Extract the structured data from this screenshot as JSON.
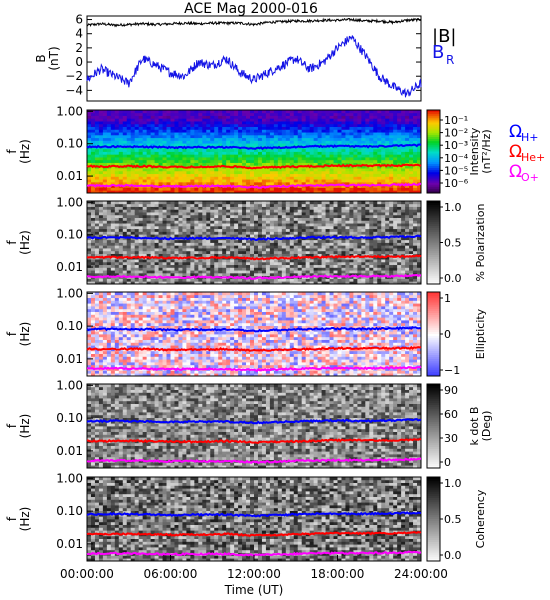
{
  "title": "ACE Mag 2000-016",
  "colors": {
    "bmag": "#000000",
    "br": "#1414e6",
    "h_gyro": "#0000ff",
    "he_gyro": "#ff0000",
    "o_gyro": "#ff00ff"
  },
  "chart_data": [
    {
      "type": "line",
      "panel": "B",
      "ylabel_line1": "B",
      "ylabel_line2": "(nT)",
      "ylim": [
        -5.5,
        6.5
      ],
      "yticks": [
        6,
        4,
        2,
        0,
        -2,
        -4
      ],
      "series": [
        {
          "name": "|B|",
          "color": "#000000",
          "x": [
            0,
            1,
            2,
            3,
            4,
            5,
            6,
            7,
            8,
            9,
            10,
            11,
            12,
            13,
            14,
            15,
            16,
            17,
            18,
            19,
            20,
            21,
            22,
            23,
            24
          ],
          "values": [
            5.2,
            5.4,
            5.2,
            5.3,
            5.4,
            5.3,
            5.4,
            5.5,
            5.4,
            5.5,
            5.5,
            5.5,
            5.3,
            5.6,
            5.7,
            5.8,
            5.8,
            5.9,
            5.9,
            6.0,
            5.8,
            5.8,
            5.6,
            5.9,
            6.0
          ]
        },
        {
          "name": "B_R",
          "label_main": "B",
          "label_sub": "R",
          "color": "#1414e6",
          "x": [
            0,
            1,
            2,
            3,
            4,
            5,
            6,
            7,
            8,
            9,
            10,
            11,
            12,
            13,
            14,
            15,
            16,
            17,
            18,
            19,
            20,
            21,
            22,
            23,
            24
          ],
          "values": [
            -2.5,
            -1.0,
            -2.0,
            -3.0,
            0.5,
            -0.5,
            -1.5,
            -2.0,
            0.0,
            -0.5,
            0.5,
            -1.5,
            -2.5,
            -1.5,
            -0.5,
            0.5,
            -1.0,
            0.0,
            2.0,
            3.5,
            1.0,
            -2.0,
            -3.5,
            -4.5,
            -3.0
          ]
        }
      ]
    },
    {
      "type": "heatmap",
      "panel": "intensity",
      "ylabel_line1": "f",
      "ylabel_line2": "(Hz)",
      "yscale": "log",
      "ylim": [
        0.003,
        1.1
      ],
      "yticks": [
        "1.00",
        "0.10",
        "0.01"
      ],
      "colorbar": {
        "label_line1": "Intensity",
        "label_line2": "(nT²/Hz)",
        "ticks": [
          "10⁻¹",
          "10⁻²",
          "10⁻³",
          "10⁻⁴",
          "10⁻⁵",
          "10⁻⁶"
        ],
        "scale": "rainbow"
      }
    },
    {
      "type": "heatmap",
      "panel": "polarization",
      "ylabel_line1": "f",
      "ylabel_line2": "(Hz)",
      "yscale": "log",
      "yticks": [
        "1.00",
        "0.10",
        "0.01"
      ],
      "colorbar": {
        "label": "% Polarization",
        "ticks": [
          "1.0",
          "0.5",
          "0.0"
        ],
        "scale": "gray"
      }
    },
    {
      "type": "heatmap",
      "panel": "ellipticity",
      "ylabel_line1": "f",
      "ylabel_line2": "(Hz)",
      "yscale": "log",
      "yticks": [
        "1.00",
        "0.10",
        "0.01"
      ],
      "colorbar": {
        "label": "Ellipticity",
        "ticks": [
          "1",
          "0",
          "−1"
        ],
        "scale": "red-white-blue"
      }
    },
    {
      "type": "heatmap",
      "panel": "kdotb",
      "ylabel_line1": "f",
      "ylabel_line2": "(Hz)",
      "yscale": "log",
      "yticks": [
        "1.00",
        "0.10",
        "0.01"
      ],
      "colorbar": {
        "label_line1": "k dot B",
        "label_line2": "(Deg)",
        "ticks": [
          "90",
          "60",
          "30",
          "0"
        ],
        "scale": "gray"
      }
    },
    {
      "type": "heatmap",
      "panel": "coherency",
      "ylabel_line1": "f",
      "ylabel_line2": "(Hz)",
      "yscale": "log",
      "yticks": [
        "1.00",
        "0.10",
        "0.01"
      ],
      "colorbar": {
        "label": "Coherency",
        "ticks": [
          "1.0",
          "0.5",
          "0.0"
        ],
        "scale": "gray"
      }
    }
  ],
  "gyrofrequencies": {
    "x_hours": [
      0,
      2,
      4,
      6,
      8,
      10,
      12,
      14,
      16,
      18,
      20,
      22,
      24
    ],
    "H+": {
      "label_main": "Ω",
      "label_sub": "H+",
      "hz": [
        0.08,
        0.082,
        0.08,
        0.076,
        0.078,
        0.078,
        0.072,
        0.076,
        0.082,
        0.084,
        0.082,
        0.085,
        0.09
      ]
    },
    "He+": {
      "label_main": "Ω",
      "label_sub": "He+",
      "hz": [
        0.02,
        0.02,
        0.02,
        0.019,
        0.019,
        0.02,
        0.018,
        0.019,
        0.02,
        0.021,
        0.021,
        0.021,
        0.022
      ]
    },
    "O+": {
      "label_main": "Ω",
      "label_sub": "O+",
      "hz": [
        0.005,
        0.0051,
        0.005,
        0.0048,
        0.0049,
        0.0049,
        0.0045,
        0.0048,
        0.0051,
        0.0052,
        0.0052,
        0.0053,
        0.0056
      ]
    }
  },
  "x_axis": {
    "label": "Time (UT)",
    "range_hours": [
      0,
      24
    ],
    "ticks": [
      "00:00:00",
      "06:00:00",
      "12:00:00",
      "18:00:00",
      "24:00:00"
    ]
  }
}
